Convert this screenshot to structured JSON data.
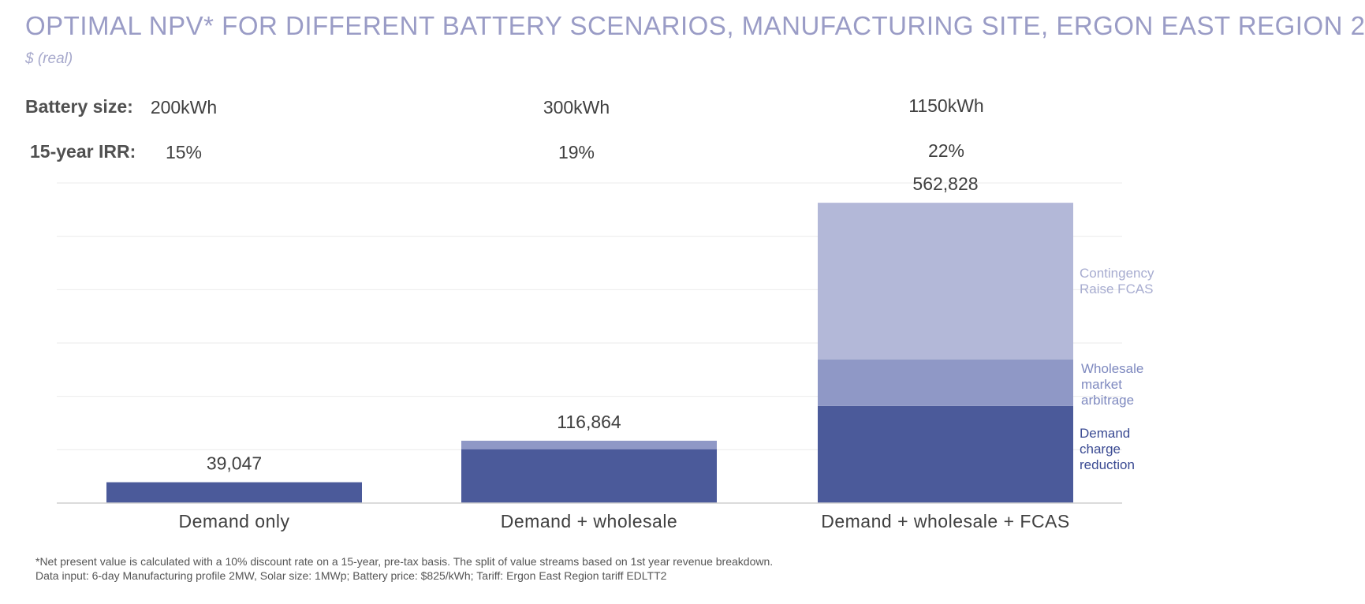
{
  "header": {
    "title": "OPTIMAL NPV* FOR DIFFERENT BATTERY SCENARIOS, MANUFACTURING SITE, ERGON EAST REGION 2",
    "subtitle": "$ (real)"
  },
  "summary": {
    "battery_label": "Battery size:",
    "irr_label": "15-year IRR:",
    "battery_sizes": [
      "200kWh",
      "300kWh",
      "1150kWh"
    ],
    "irrs": [
      "15%",
      "19%",
      "22%"
    ]
  },
  "footnotes": {
    "line1": "*Net present value is calculated with a 10% discount rate on a 15-year, pre-tax basis. The split of value streams based on 1st year revenue breakdown.",
    "line2": "Data input: 6-day Manufacturing profile 2MW, Solar size: 1MWp; Battery price: $825/kWh; Tariff: Ergon East Region tariff EDLTT2"
  },
  "chart_data": {
    "type": "bar",
    "stacked": true,
    "categories": [
      "Demand only",
      "Demand + wholesale",
      "Demand + wholesale + FCAS"
    ],
    "series": [
      {
        "name": "Demand charge reduction",
        "values": [
          39047,
          101000,
          182000
        ],
        "color": "#4b5a9a"
      },
      {
        "name": "Wholesale market arbitrage",
        "values": [
          0,
          15864,
          87000
        ],
        "color": "#8f98c6"
      },
      {
        "name": "Contingency Raise FCAS",
        "values": [
          0,
          0,
          293828
        ],
        "color": "#b3b8d8"
      }
    ],
    "totals": [
      "39,047",
      "116,864",
      "562,828"
    ],
    "legend_labels": [
      {
        "lines": [
          "Contingency",
          "Raise FCAS"
        ],
        "color": "#a7acd0"
      },
      {
        "lines": [
          "Wholesale",
          "market",
          "arbitrage"
        ],
        "color": "#7e89bf"
      },
      {
        "lines": [
          "Demand",
          "charge",
          "reduction"
        ],
        "color": "#3b4b93"
      }
    ],
    "legend": "right",
    "ylim": [
      0,
      600000
    ],
    "grid": true
  }
}
